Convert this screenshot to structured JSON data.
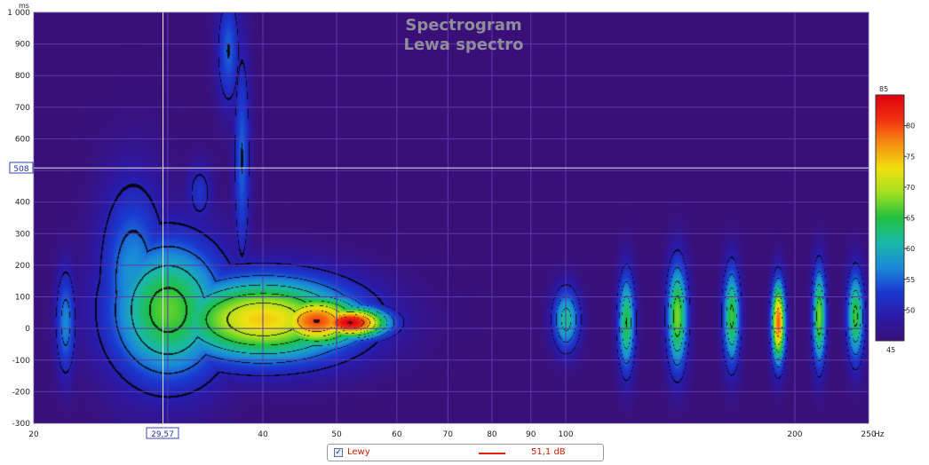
{
  "chart_data": {
    "type": "heatmap",
    "title": "Spectrogram",
    "subtitle": "Lewa spectro",
    "xlabel_unit": "Hz",
    "ylabel_unit": "ms",
    "x_scale": "log",
    "xlim": [
      20,
      250
    ],
    "ylim": [
      -300,
      1000
    ],
    "x_ticks": [
      20,
      30,
      40,
      50,
      60,
      70,
      80,
      90,
      100,
      200,
      250
    ],
    "x_tick_labels": [
      "20",
      "",
      "40",
      "50",
      "60",
      "70",
      "80",
      "90",
      "100",
      "200",
      "250"
    ],
    "y_ticks": [
      -300,
      -200,
      -100,
      0,
      100,
      200,
      300,
      400,
      500,
      600,
      700,
      800,
      900,
      1000
    ],
    "y_tick_labels": [
      "-300",
      "-200",
      "-100",
      "0",
      "100",
      "200",
      "300",
      "400",
      "",
      "600",
      "700",
      "800",
      "900",
      "1 000"
    ],
    "colorbar": {
      "min": 45,
      "max": 85,
      "ticks": [
        50,
        55,
        60,
        65,
        70,
        75,
        80
      ],
      "tick_labels": [
        "50",
        "55",
        "60",
        "65",
        "70",
        "75",
        "80"
      ],
      "min_label": "45",
      "max_label": "85",
      "colors": [
        "#3a1078",
        "#2a1aa8",
        "#1a3ad0",
        "#1a8ad8",
        "#1ab8a8",
        "#20c040",
        "#a0e020",
        "#f0e010",
        "#f89010",
        "#f03010",
        "#e00010"
      ]
    },
    "cursor": {
      "x": 29.57,
      "x_label": "29,57",
      "y": 508,
      "y_label": "508"
    },
    "blobs": [
      {
        "f": 52,
        "t": 20,
        "sf": 0.22,
        "st": 35,
        "db": 85
      },
      {
        "f": 47,
        "t": 25,
        "sf": 0.28,
        "st": 60,
        "db": 80
      },
      {
        "f": 40,
        "t": 30,
        "sf": 0.55,
        "st": 95,
        "db": 74
      },
      {
        "f": 30,
        "t": 60,
        "sf": 0.35,
        "st": 160,
        "db": 67
      },
      {
        "f": 27,
        "t": 150,
        "sf": 0.2,
        "st": 220,
        "db": 58
      },
      {
        "f": 36,
        "t": 880,
        "sf": 0.07,
        "st": 130,
        "db": 55
      },
      {
        "f": 37.5,
        "t": 540,
        "sf": 0.05,
        "st": 260,
        "db": 55
      },
      {
        "f": 33,
        "t": 430,
        "sf": 0.08,
        "st": 70,
        "db": 52
      },
      {
        "f": 120,
        "t": 20,
        "sf": 0.05,
        "st": 110,
        "db": 65
      },
      {
        "f": 140,
        "t": 40,
        "sf": 0.06,
        "st": 120,
        "db": 68
      },
      {
        "f": 165,
        "t": 40,
        "sf": 0.05,
        "st": 110,
        "db": 66
      },
      {
        "f": 190,
        "t": 20,
        "sf": 0.04,
        "st": 90,
        "db": 79
      },
      {
        "f": 215,
        "t": 40,
        "sf": 0.04,
        "st": 110,
        "db": 68
      },
      {
        "f": 240,
        "t": 40,
        "sf": 0.05,
        "st": 100,
        "db": 66
      },
      {
        "f": 100,
        "t": 30,
        "sf": 0.08,
        "st": 70,
        "db": 62
      },
      {
        "f": 22,
        "t": 20,
        "sf": 0.06,
        "st": 120,
        "db": 57
      }
    ]
  },
  "legend": {
    "checked": "✓",
    "name": "Lewy",
    "value": "51,1 dB"
  }
}
